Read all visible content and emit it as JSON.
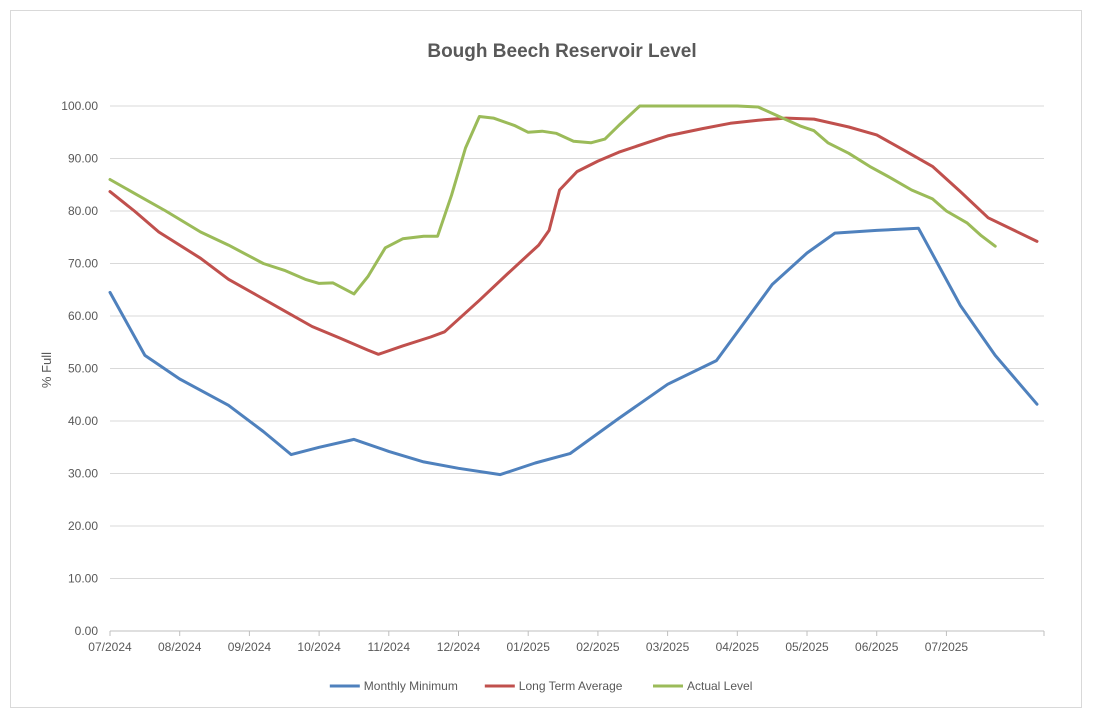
{
  "chart_data": {
    "type": "line",
    "title": "Bough Beech Reservoir Level",
    "xlabel": "",
    "ylabel": "% Full",
    "ylim": [
      0,
      100
    ],
    "yticks": [
      "0.00",
      "10.00",
      "20.00",
      "30.00",
      "40.00",
      "50.00",
      "60.00",
      "70.00",
      "80.00",
      "90.00",
      "100.00"
    ],
    "xlim": [
      0,
      13.4
    ],
    "xtick_labels": [
      "07/2024",
      "08/2024",
      "09/2024",
      "10/2024",
      "11/2024",
      "12/2024",
      "01/2025",
      "02/2025",
      "03/2025",
      "04/2025",
      "05/2025",
      "06/2025",
      "07/2025"
    ],
    "grid": "horizontal",
    "legend_position": "bottom",
    "series": [
      {
        "name": "Monthly Minimum",
        "color": "#4f81bd",
        "points": [
          [
            0.0,
            64.5
          ],
          [
            0.5,
            52.5
          ],
          [
            1.0,
            48.0
          ],
          [
            1.7,
            43.0
          ],
          [
            2.2,
            38.0
          ],
          [
            2.6,
            33.6
          ],
          [
            3.0,
            35.0
          ],
          [
            3.5,
            36.5
          ],
          [
            4.0,
            34.2
          ],
          [
            4.5,
            32.2
          ],
          [
            5.0,
            31.0
          ],
          [
            5.6,
            29.8
          ],
          [
            6.1,
            32.0
          ],
          [
            6.6,
            33.8
          ],
          [
            7.3,
            40.5
          ],
          [
            8.0,
            47.0
          ],
          [
            8.7,
            51.5
          ],
          [
            9.5,
            66.0
          ],
          [
            10.0,
            72.0
          ],
          [
            10.4,
            75.8
          ],
          [
            11.0,
            76.3
          ],
          [
            11.6,
            76.7
          ],
          [
            12.2,
            62.0
          ],
          [
            12.7,
            52.5
          ],
          [
            13.3,
            43.2
          ]
        ]
      },
      {
        "name": "Long Term Average",
        "color": "#c0504d",
        "points": [
          [
            0.0,
            83.7
          ],
          [
            0.35,
            80.0
          ],
          [
            0.7,
            76.0
          ],
          [
            1.3,
            71.0
          ],
          [
            1.7,
            67.0
          ],
          [
            2.1,
            64.0
          ],
          [
            2.5,
            61.0
          ],
          [
            2.9,
            58.0
          ],
          [
            3.3,
            55.8
          ],
          [
            3.7,
            53.5
          ],
          [
            3.85,
            52.7
          ],
          [
            4.2,
            54.3
          ],
          [
            4.6,
            56.0
          ],
          [
            4.8,
            57.0
          ],
          [
            5.3,
            63.0
          ],
          [
            5.7,
            68.0
          ],
          [
            6.15,
            73.5
          ],
          [
            6.3,
            76.3
          ],
          [
            6.45,
            84.0
          ],
          [
            6.7,
            87.5
          ],
          [
            7.0,
            89.5
          ],
          [
            7.3,
            91.2
          ],
          [
            7.7,
            93.0
          ],
          [
            8.0,
            94.3
          ],
          [
            8.5,
            95.7
          ],
          [
            8.9,
            96.7
          ],
          [
            9.3,
            97.3
          ],
          [
            9.7,
            97.7
          ],
          [
            10.1,
            97.5
          ],
          [
            10.6,
            96.0
          ],
          [
            11.0,
            94.5
          ],
          [
            11.4,
            91.5
          ],
          [
            11.8,
            88.5
          ],
          [
            12.2,
            83.7
          ],
          [
            12.6,
            78.7
          ],
          [
            13.3,
            74.2
          ]
        ]
      },
      {
        "name": "Actual Level",
        "color": "#9bbb59",
        "points": [
          [
            0.0,
            86.0
          ],
          [
            0.4,
            83.0
          ],
          [
            0.8,
            80.0
          ],
          [
            1.3,
            76.0
          ],
          [
            1.7,
            73.5
          ],
          [
            2.2,
            70.0
          ],
          [
            2.5,
            68.7
          ],
          [
            2.8,
            67.0
          ],
          [
            3.0,
            66.2
          ],
          [
            3.2,
            66.3
          ],
          [
            3.5,
            64.2
          ],
          [
            3.7,
            67.5
          ],
          [
            3.95,
            73.0
          ],
          [
            4.2,
            74.7
          ],
          [
            4.5,
            75.2
          ],
          [
            4.7,
            75.2
          ],
          [
            4.9,
            83.0
          ],
          [
            5.1,
            92.0
          ],
          [
            5.3,
            98.0
          ],
          [
            5.5,
            97.7
          ],
          [
            5.8,
            96.3
          ],
          [
            6.0,
            95.0
          ],
          [
            6.2,
            95.2
          ],
          [
            6.4,
            94.8
          ],
          [
            6.65,
            93.3
          ],
          [
            6.9,
            93.0
          ],
          [
            7.1,
            93.7
          ],
          [
            7.3,
            96.3
          ],
          [
            7.6,
            100.0
          ],
          [
            8.0,
            100.0
          ],
          [
            8.5,
            100.0
          ],
          [
            9.0,
            100.0
          ],
          [
            9.3,
            99.8
          ],
          [
            9.6,
            98.0
          ],
          [
            9.9,
            96.2
          ],
          [
            10.1,
            95.3
          ],
          [
            10.3,
            93.0
          ],
          [
            10.6,
            91.0
          ],
          [
            10.9,
            88.5
          ],
          [
            11.2,
            86.3
          ],
          [
            11.5,
            84.0
          ],
          [
            11.8,
            82.3
          ],
          [
            12.0,
            80.0
          ],
          [
            12.3,
            77.7
          ],
          [
            12.5,
            75.3
          ],
          [
            12.7,
            73.3
          ]
        ]
      }
    ]
  }
}
